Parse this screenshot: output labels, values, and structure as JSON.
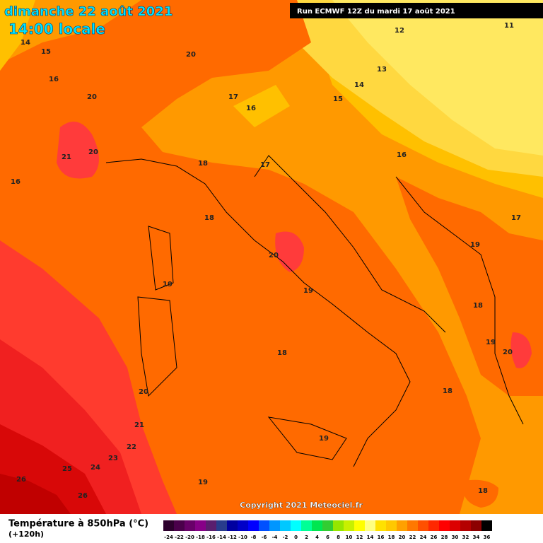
{
  "header": {
    "title": "dimanche 22 août 2021",
    "time": "14:00 locale",
    "run": "Run ECMWF 12Z du mardi 17 août 2021"
  },
  "contour_labels": [
    14,
    15,
    16,
    20,
    21,
    20,
    16,
    20,
    17,
    16,
    12,
    11,
    13,
    14,
    15,
    16,
    18,
    17,
    18,
    17,
    19,
    20,
    19,
    19,
    18,
    19,
    20,
    18,
    20,
    18,
    21,
    19,
    22,
    23,
    24,
    25,
    26,
    26,
    19,
    18
  ],
  "copyright": "Copyright 2021 Meteociel.fr",
  "footer": {
    "title": "Température à 850hPa (°C)",
    "lead": "(+120h)"
  },
  "legend": {
    "ticks": [
      -24,
      -22,
      -20,
      -18,
      -16,
      -14,
      -12,
      -10,
      -8,
      -6,
      -4,
      -2,
      0,
      2,
      4,
      6,
      8,
      10,
      12,
      14,
      16,
      18,
      20,
      22,
      24,
      26,
      28,
      30,
      32,
      34,
      36
    ],
    "colors": [
      "#2d002d",
      "#4b004b",
      "#690069",
      "#870087",
      "#5a1e6e",
      "#283c8c",
      "#0000a0",
      "#0000c8",
      "#0000ff",
      "#0050ff",
      "#0096ff",
      "#00c8ff",
      "#00ffff",
      "#00ff96",
      "#00e650",
      "#32cd32",
      "#96e600",
      "#c8f000",
      "#ffff00",
      "#ffff80",
      "#ffe100",
      "#ffc800",
      "#ffa000",
      "#ff7800",
      "#ff5000",
      "#ff2800",
      "#ff0000",
      "#dc0000",
      "#b40000",
      "#8c0000",
      "#000000"
    ]
  }
}
